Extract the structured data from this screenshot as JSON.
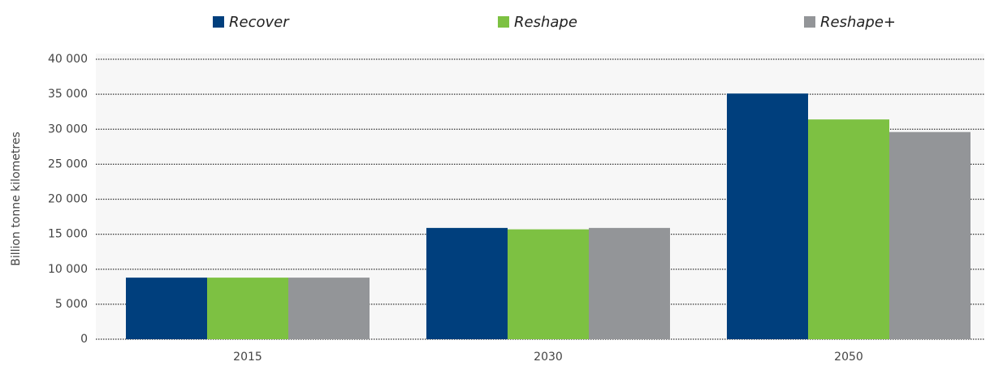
{
  "chart_data": {
    "type": "bar",
    "y_label": "Billion tonne kilometres",
    "categories": [
      "2015",
      "2030",
      "2050"
    ],
    "series": [
      {
        "name": "Recover",
        "color": "#003f7d",
        "values": [
          8800,
          15900,
          35100
        ]
      },
      {
        "name": "Reshape",
        "color": "#7dc142",
        "values": [
          8800,
          15700,
          31400
        ]
      },
      {
        "name": "Reshape+",
        "color": "#939598",
        "values": [
          8800,
          15900,
          29600
        ]
      }
    ],
    "ylim": [
      0,
      40000
    ],
    "yticks": [
      0,
      {
        "value": 5000,
        "label": "5 000"
      },
      {
        "value": 10000,
        "label": "10 000"
      },
      {
        "value": 15000,
        "label": "15 000"
      },
      {
        "value": 20000,
        "label": "20 000"
      },
      {
        "value": 25000,
        "label": "25 000"
      },
      {
        "value": 30000,
        "label": "30 000"
      },
      {
        "value": 35000,
        "label": "35 000"
      },
      {
        "value": 40000,
        "label": "40 000"
      }
    ],
    "grid": true,
    "legend": "top"
  }
}
